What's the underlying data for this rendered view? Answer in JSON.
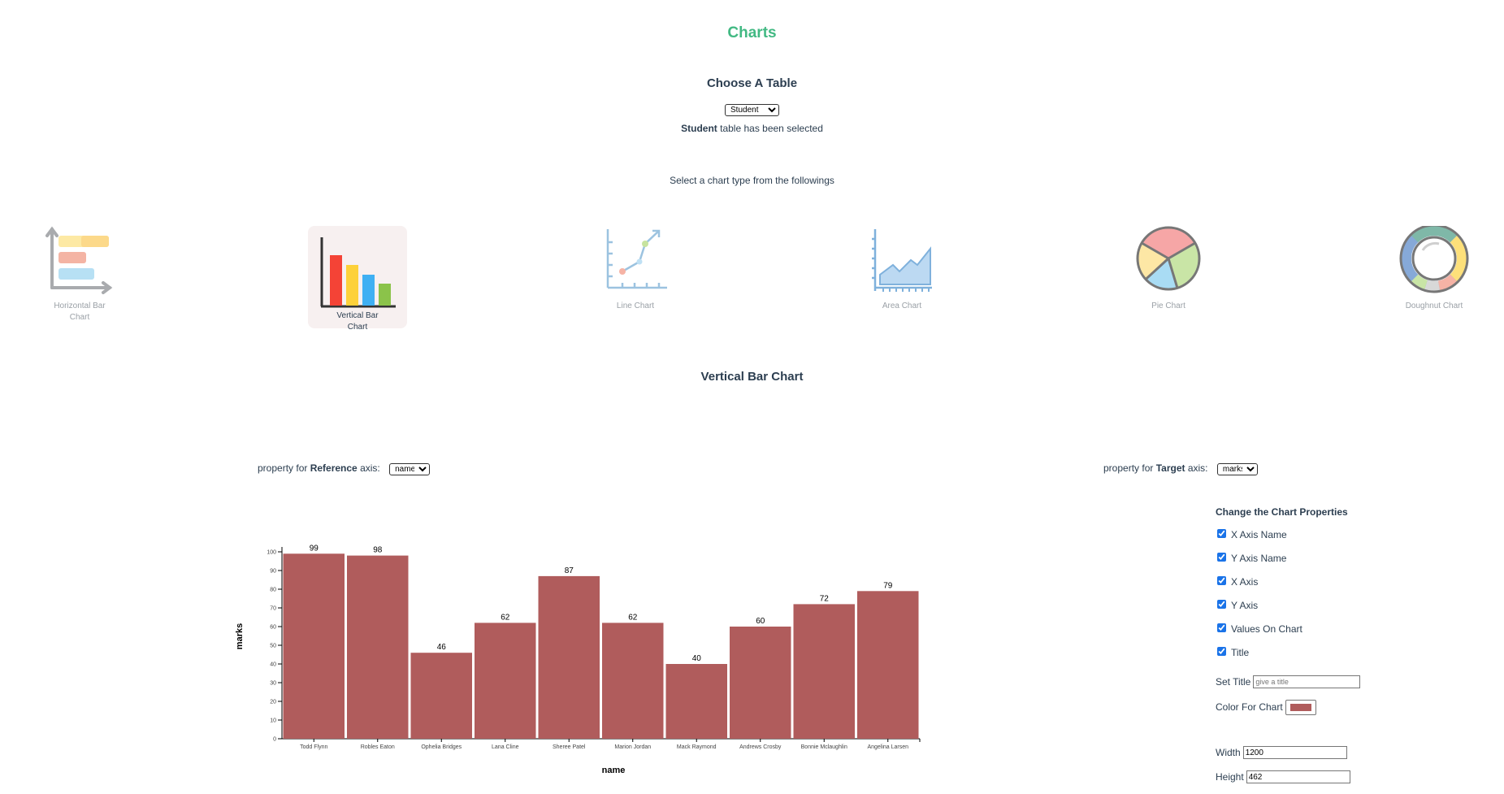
{
  "header": {
    "title": "Charts",
    "choose_table_heading": "Choose A Table",
    "table_select_value": "Student",
    "selected_table_name": "Student",
    "selected_table_suffix": "table has been selected",
    "chart_type_prompt": "Select a chart type from the followings"
  },
  "chart_types": [
    {
      "label": "Horizontal Bar Chart",
      "icon": "horizontal-bar-chart-icon",
      "selected": false
    },
    {
      "label": "Vertical Bar Chart",
      "icon": "vertical-bar-chart-icon",
      "selected": true
    },
    {
      "label": "Line Chart",
      "icon": "line-chart-icon",
      "selected": false
    },
    {
      "label": "Area Chart",
      "icon": "area-chart-icon",
      "selected": false
    },
    {
      "label": "Pie Chart",
      "icon": "pie-chart-icon",
      "selected": false
    },
    {
      "label": "Doughnut Chart",
      "icon": "doughnut-chart-icon",
      "selected": false
    }
  ],
  "section_title": "Vertical Bar Chart",
  "axis_selectors": {
    "reference_prefix": "property for",
    "reference_bold": "Reference",
    "reference_suffix": "axis:",
    "reference_value": "name",
    "target_prefix": "property for",
    "target_bold": "Target",
    "target_suffix": "axis:",
    "target_value": "marks"
  },
  "properties_panel": {
    "heading": "Change the Chart Properties",
    "checkboxes": [
      {
        "label": "X Axis Name",
        "checked": true
      },
      {
        "label": "Y Axis Name",
        "checked": true
      },
      {
        "label": "X Axis",
        "checked": true
      },
      {
        "label": "Y Axis",
        "checked": true
      },
      {
        "label": "Values On Chart",
        "checked": true
      },
      {
        "label": "Title",
        "checked": true
      }
    ],
    "set_title_label": "Set Title",
    "set_title_placeholder": "give a title",
    "color_label": "Color For Chart",
    "color_value": "#b05c5c",
    "width_label": "Width",
    "width_value": "1200",
    "height_label": "Height",
    "height_value": "462"
  },
  "chart_data": {
    "type": "bar",
    "categories": [
      "Todd Flynn",
      "Robles Eaton",
      "Ophelia Bridges",
      "Lana Cline",
      "Sheree Patel",
      "Marion Jordan",
      "Mack Raymond",
      "Andrews Crosby",
      "Bonnie Mclaughlin",
      "Angelina Larsen"
    ],
    "values": [
      99,
      98,
      46,
      62,
      87,
      62,
      40,
      60,
      72,
      79
    ],
    "xlabel": "name",
    "ylabel": "marks",
    "ylim": [
      0,
      100
    ],
    "yticks": [
      0,
      10,
      20,
      30,
      40,
      50,
      60,
      70,
      80,
      90,
      100
    ],
    "bar_color": "#b05c5c",
    "grid": false
  }
}
